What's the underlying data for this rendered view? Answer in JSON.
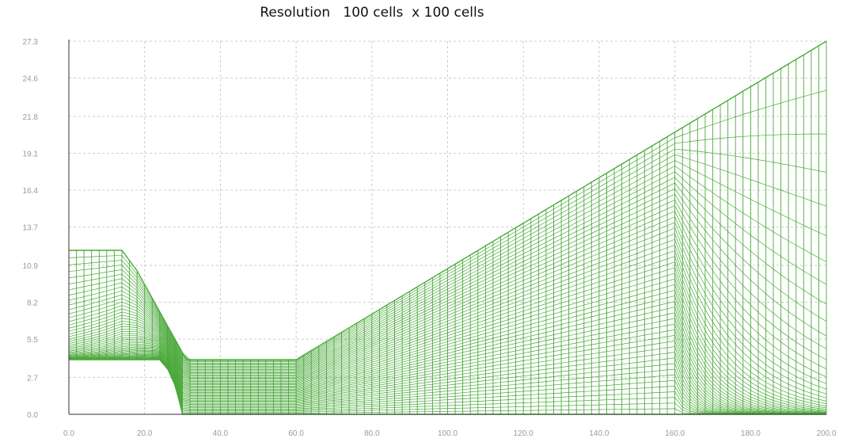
{
  "chart_data": {
    "type": "line",
    "title": "Resolution   100 cells  x 100 cells",
    "xlabel": "",
    "ylabel": "",
    "xlim": [
      0,
      200
    ],
    "ylim": [
      0,
      27.3
    ],
    "x_ticks": [
      "0.0",
      "20.0",
      "40.0",
      "60.0",
      "80.0",
      "100.0",
      "120.0",
      "140.0",
      "160.0",
      "180.0",
      "200.0"
    ],
    "y_ticks": [
      "0.0",
      "2.7",
      "5.5",
      "8.2",
      "10.9",
      "13.7",
      "16.4",
      "19.1",
      "21.8",
      "24.6",
      "27.3"
    ],
    "grid": true,
    "legend": "none",
    "mesh": {
      "cells_x": 100,
      "cells_y": 100,
      "bottom_boundary": {
        "x": [
          0,
          200
        ],
        "y": [
          0,
          0
        ]
      },
      "top_boundary": {
        "x": [
          0,
          14,
          18,
          21,
          24,
          28,
          31,
          33,
          60,
          200
        ],
        "y": [
          12,
          12,
          10.5,
          9,
          7.5,
          5.5,
          4,
          4,
          4,
          27.3
        ]
      },
      "inner_boundary": {
        "x": [
          0,
          24,
          27,
          29,
          30,
          60,
          200
        ],
        "y": [
          4,
          4,
          3,
          1.2,
          0,
          0,
          0
        ]
      }
    },
    "colors": {
      "series": "#4aa93a",
      "grid": "#cccccc",
      "axis": "#333333",
      "tick_label": "#9a9a9a"
    }
  }
}
